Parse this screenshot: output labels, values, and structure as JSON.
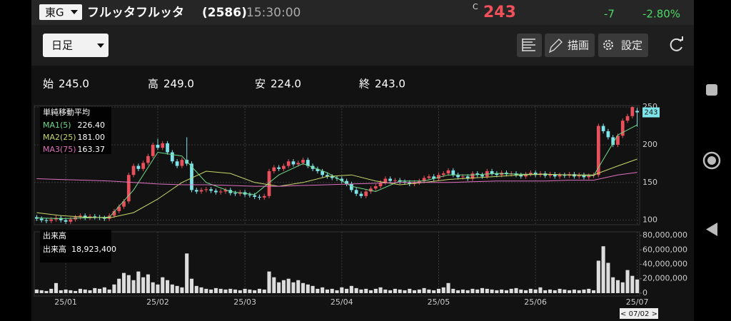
{
  "header": {
    "exchange": "東G",
    "name": "フルッタフルッタ",
    "code": "(2586)",
    "time": "15:30:00",
    "status": "C",
    "price": "243",
    "change": "-7",
    "change_pct": "-2.80%"
  },
  "toolbar": {
    "period": "日足",
    "draw": "描画",
    "settings": "設定"
  },
  "ohlc": [
    {
      "label": "始",
      "value": "245.0"
    },
    {
      "label": "高",
      "value": "249.0"
    },
    {
      "label": "安",
      "value": "224.0"
    },
    {
      "label": "終",
      "value": "243.0"
    }
  ],
  "cursor": "< 07/02 >",
  "chart_data": [
    {
      "type": "candlestick",
      "legend_title": "単純移動平均",
      "up_color": "#e8505b",
      "down_color": "#7fe3ea",
      "xlim": [
        -0.5,
        124.5
      ],
      "ylim": [
        94,
        252
      ],
      "yticks": [
        100,
        150,
        200,
        250
      ],
      "grid": true,
      "xticks": [
        {
          "value": 6,
          "label": "25/01"
        },
        {
          "value": 25,
          "label": "25/02"
        },
        {
          "value": 43,
          "label": "25/03"
        },
        {
          "value": 63,
          "label": "25/04"
        },
        {
          "value": 83,
          "label": "25/05"
        },
        {
          "value": 103,
          "label": "25/06"
        },
        {
          "value": 124,
          "label": "25/07"
        }
      ],
      "open": [
        104,
        102,
        100,
        99,
        101,
        103,
        100,
        98,
        101,
        104,
        106,
        103,
        105,
        104,
        103,
        102,
        106,
        112,
        118,
        125,
        160,
        172,
        168,
        176,
        185,
        200,
        196,
        202,
        190,
        178,
        172,
        180,
        175,
        140,
        138,
        140,
        141,
        139,
        137,
        138,
        140,
        136,
        135,
        137,
        134,
        133,
        131,
        130,
        132,
        165,
        170,
        168,
        172,
        178,
        174,
        176,
        180,
        172,
        168,
        165,
        160,
        158,
        156,
        155,
        152,
        148,
        140,
        135,
        132,
        138,
        142,
        145,
        150,
        155,
        152,
        153,
        151,
        150,
        148,
        150,
        152,
        156,
        158,
        155,
        160,
        162,
        166,
        160,
        157,
        158,
        155,
        162,
        160,
        158,
        165,
        162,
        160,
        163,
        161,
        162,
        160,
        158,
        161,
        163,
        160,
        162,
        159,
        161,
        158,
        160,
        159,
        161,
        158,
        160,
        157,
        159,
        160,
        225,
        218,
        210,
        200,
        212,
        232,
        238,
        245
      ],
      "high": [
        107,
        105,
        103,
        104,
        106,
        106,
        103,
        104,
        107,
        109,
        109,
        108,
        108,
        107,
        106,
        109,
        115,
        121,
        128,
        163,
        175,
        175,
        179,
        188,
        203,
        208,
        205,
        205,
        193,
        181,
        183,
        210,
        178,
        143,
        143,
        144,
        144,
        142,
        141,
        143,
        143,
        139,
        140,
        140,
        137,
        136,
        134,
        135,
        168,
        173,
        173,
        175,
        181,
        181,
        179,
        183,
        183,
        175,
        171,
        168,
        163,
        161,
        159,
        158,
        155,
        151,
        143,
        138,
        141,
        145,
        148,
        153,
        158,
        158,
        156,
        156,
        154,
        153,
        153,
        155,
        159,
        161,
        161,
        163,
        165,
        169,
        169,
        163,
        161,
        161,
        165,
        165,
        163,
        168,
        168,
        165,
        166,
        166,
        165,
        165,
        163,
        164,
        166,
        166,
        165,
        165,
        164,
        164,
        163,
        163,
        164,
        164,
        163,
        163,
        162,
        163,
        228,
        228,
        221,
        213,
        215,
        235,
        241,
        251,
        249
      ],
      "low": [
        99,
        97,
        96,
        96,
        98,
        97,
        95,
        95,
        98,
        101,
        100,
        100,
        101,
        100,
        99,
        99,
        103,
        109,
        115,
        122,
        157,
        165,
        165,
        173,
        182,
        193,
        193,
        187,
        175,
        169,
        169,
        172,
        137,
        135,
        135,
        137,
        136,
        134,
        134,
        135,
        133,
        132,
        132,
        131,
        130,
        128,
        127,
        127,
        129,
        162,
        165,
        165,
        169,
        171,
        171,
        173,
        169,
        165,
        162,
        157,
        155,
        153,
        152,
        149,
        145,
        137,
        132,
        129,
        129,
        135,
        139,
        142,
        147,
        149,
        149,
        148,
        147,
        145,
        145,
        147,
        149,
        153,
        152,
        152,
        157,
        159,
        157,
        154,
        154,
        152,
        152,
        157,
        155,
        155,
        159,
        157,
        157,
        158,
        158,
        157,
        155,
        155,
        158,
        157,
        157,
        156,
        156,
        155,
        155,
        156,
        156,
        155,
        155,
        154,
        154,
        156,
        157,
        215,
        207,
        197,
        197,
        209,
        229,
        235,
        224
      ],
      "close": [
        102,
        100,
        99,
        101,
        103,
        100,
        98,
        101,
        104,
        106,
        103,
        105,
        104,
        103,
        102,
        106,
        112,
        118,
        125,
        160,
        172,
        168,
        176,
        185,
        200,
        196,
        202,
        190,
        178,
        172,
        180,
        175,
        140,
        138,
        140,
        141,
        139,
        137,
        138,
        140,
        136,
        135,
        137,
        134,
        133,
        131,
        130,
        132,
        165,
        170,
        168,
        172,
        178,
        174,
        176,
        180,
        172,
        168,
        165,
        160,
        158,
        156,
        155,
        152,
        148,
        140,
        135,
        132,
        138,
        142,
        145,
        150,
        155,
        152,
        153,
        151,
        150,
        148,
        150,
        152,
        156,
        158,
        155,
        160,
        162,
        166,
        160,
        157,
        158,
        155,
        162,
        160,
        158,
        165,
        162,
        160,
        163,
        161,
        162,
        160,
        158,
        161,
        163,
        160,
        162,
        159,
        161,
        158,
        160,
        159,
        161,
        158,
        160,
        157,
        159,
        160,
        225,
        218,
        210,
        200,
        212,
        232,
        238,
        250,
        243
      ],
      "series": [
        {
          "name": "MA1(5)",
          "latest": "226.40",
          "color": "#6fdc8c",
          "x": [
            0,
            5,
            10,
            15,
            20,
            25,
            30,
            35,
            40,
            45,
            50,
            55,
            60,
            65,
            70,
            75,
            80,
            85,
            90,
            95,
            100,
            105,
            110,
            115,
            120,
            124
          ],
          "values": [
            103,
            102,
            103,
            104,
            140,
            190,
            185,
            150,
            138,
            134,
            160,
            175,
            163,
            145,
            138,
            152,
            152,
            160,
            160,
            162,
            161,
            161,
            160,
            159,
            213,
            226.4
          ]
        },
        {
          "name": "MA2(25)",
          "latest": "181.00",
          "color": "#c8d86a",
          "x": [
            0,
            5,
            10,
            15,
            20,
            25,
            30,
            35,
            40,
            45,
            50,
            55,
            60,
            65,
            70,
            75,
            80,
            85,
            90,
            95,
            100,
            105,
            110,
            115,
            120,
            124
          ],
          "values": [
            110,
            106,
            104,
            103,
            110,
            128,
            150,
            165,
            162,
            150,
            145,
            150,
            158,
            160,
            152,
            147,
            150,
            154,
            156,
            158,
            160,
            161,
            160,
            160,
            172,
            181
          ]
        },
        {
          "name": "MA3(75)",
          "latest": "163.37",
          "color": "#e070c0",
          "x": [
            0,
            5,
            10,
            15,
            20,
            25,
            30,
            35,
            40,
            45,
            50,
            55,
            60,
            65,
            70,
            75,
            80,
            85,
            90,
            95,
            100,
            105,
            110,
            115,
            120,
            124
          ],
          "values": [
            155,
            154,
            153,
            152,
            150,
            148,
            147,
            147,
            146,
            145,
            145,
            146,
            147,
            148,
            149,
            150,
            150,
            150,
            151,
            152,
            152,
            152,
            153,
            153,
            160,
            163.37
          ]
        }
      ]
    },
    {
      "type": "bar",
      "title": "出来高",
      "legend_name": "出来高",
      "legend_value": "18,923,400",
      "color": "#dddddd",
      "xlim": [
        -0.5,
        124.5
      ],
      "ylim": [
        -4000000,
        85000000
      ],
      "yticks": [
        0,
        {
          "value": 20000000,
          "label": "20,000,000"
        },
        {
          "value": 40000000,
          "label": "40,000,000"
        },
        {
          "value": 60000000,
          "label": "60,000,000"
        },
        {
          "value": 80000000,
          "label": "80,000,000"
        }
      ],
      "xticks": [
        {
          "value": 6,
          "label": "25/01"
        },
        {
          "value": 25,
          "label": "25/02"
        },
        {
          "value": 43,
          "label": "25/03"
        },
        {
          "value": 63,
          "label": "25/04"
        },
        {
          "value": 83,
          "label": "25/05"
        },
        {
          "value": 103,
          "label": "25/06"
        },
        {
          "value": 124,
          "label": "25/07"
        }
      ],
      "values": [
        5000000,
        4000000,
        3000000,
        6000000,
        14000000,
        4000000,
        5000000,
        4000000,
        3000000,
        6000000,
        5000000,
        4000000,
        7000000,
        6000000,
        8000000,
        5000000,
        12000000,
        20000000,
        28000000,
        25000000,
        18000000,
        30000000,
        22000000,
        26000000,
        15000000,
        12000000,
        22000000,
        18000000,
        12000000,
        10000000,
        8000000,
        55000000,
        20000000,
        10000000,
        8000000,
        6000000,
        5000000,
        7000000,
        6000000,
        5000000,
        6000000,
        5000000,
        4000000,
        6000000,
        5000000,
        4000000,
        6000000,
        5000000,
        30000000,
        22000000,
        15000000,
        18000000,
        20000000,
        15000000,
        18000000,
        14000000,
        12000000,
        10000000,
        6000000,
        8000000,
        5000000,
        6000000,
        4000000,
        8000000,
        6000000,
        10000000,
        7000000,
        5000000,
        6000000,
        4000000,
        6000000,
        8000000,
        5000000,
        4000000,
        6000000,
        5000000,
        4000000,
        6000000,
        4000000,
        5000000,
        7000000,
        5000000,
        4000000,
        6000000,
        8000000,
        14000000,
        6000000,
        4000000,
        5000000,
        4000000,
        6000000,
        5000000,
        7000000,
        6000000,
        5000000,
        4000000,
        5000000,
        4000000,
        6000000,
        7000000,
        5000000,
        4000000,
        6000000,
        5000000,
        8000000,
        4000000,
        5000000,
        4000000,
        6000000,
        5000000,
        4000000,
        5000000,
        4000000,
        5000000,
        6000000,
        4000000,
        45000000,
        65000000,
        42000000,
        22000000,
        18000000,
        15000000,
        32000000,
        24000000,
        18923400
      ]
    }
  ]
}
